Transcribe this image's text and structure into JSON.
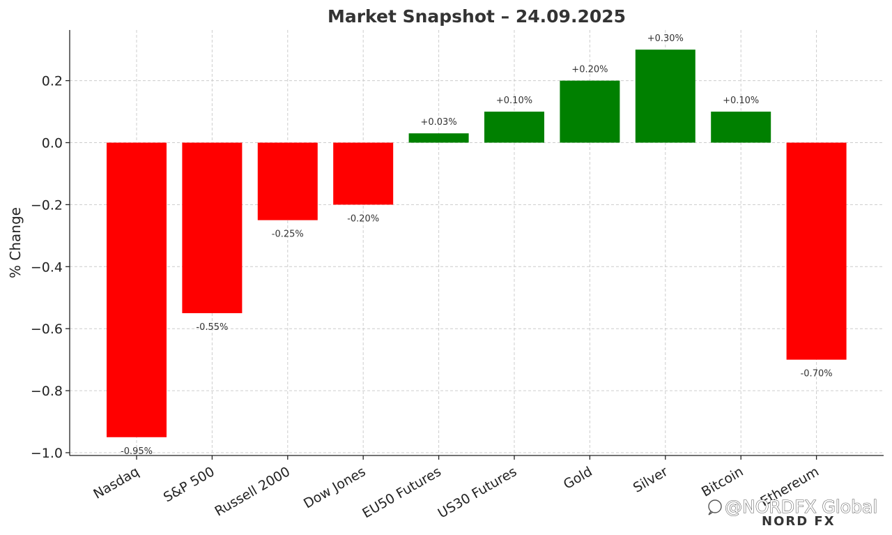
{
  "chart_data": {
    "type": "bar",
    "title": "Market Snapshot – 24.09.2025",
    "xlabel": "",
    "ylabel": "% Change",
    "categories": [
      "Nasdaq",
      "S&P 500",
      "Russell 2000",
      "Dow Jones",
      "EU50 Futures",
      "US30 Futures",
      "Gold",
      "Silver",
      "Bitcoin",
      "Ethereum"
    ],
    "values": [
      -0.95,
      -0.55,
      -0.25,
      -0.2,
      0.03,
      0.1,
      0.2,
      0.3,
      0.1,
      -0.7
    ],
    "data_labels": [
      "-0.95%",
      "-0.55%",
      "-0.25%",
      "-0.20%",
      "+0.03%",
      "+0.10%",
      "+0.20%",
      "+0.30%",
      "+0.10%",
      "-0.70%"
    ],
    "ylim": [
      -1.0,
      0.35
    ],
    "yticks": [
      0.2,
      0.0,
      -0.2,
      -0.4,
      -0.6,
      -0.8,
      -1.0
    ],
    "ytick_labels": [
      "0.2",
      "0.0",
      "−0.2",
      "−0.4",
      "−0.6",
      "−0.8",
      "−1.0"
    ],
    "grid": true,
    "colors": {
      "positive": "#008000",
      "negative": "#ff0000"
    }
  },
  "watermark": {
    "handle": "@NORDFX Global",
    "logo_text": "NORD FX",
    "icon": "chat-bubble-icon"
  }
}
